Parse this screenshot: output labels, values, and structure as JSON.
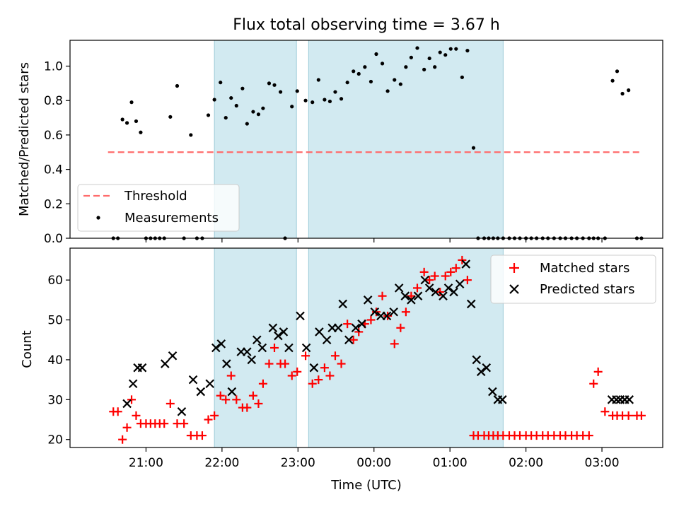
{
  "title": "Flux total observing time = 3.67 h",
  "xlabel": "Time (UTC)",
  "colors": {
    "band": "#add8e6",
    "threshold": "#ff6b6b",
    "matched": "#ff0000",
    "predicted": "#000000",
    "measure": "#000000"
  },
  "chart_data": [
    {
      "type": "scatter",
      "panel": "top",
      "ylabel": "Matched/Predicted stars",
      "ylim": [
        0,
        1.15
      ],
      "yticks": [
        "0.0",
        "0.2",
        "0.4",
        "0.6",
        "0.8",
        "1.0"
      ],
      "ytick_values": [
        0,
        0.2,
        0.4,
        0.6,
        0.8,
        1.0
      ],
      "legend": {
        "position": "lower-left",
        "entries": [
          "Threshold",
          "Measurements"
        ]
      },
      "threshold": {
        "name": "Threshold",
        "y": 0.5,
        "x": [
          20.5,
          27.5
        ]
      },
      "bands": [
        [
          21.9,
          22.98
        ],
        [
          23.14,
          25.7
        ]
      ],
      "series": [
        {
          "name": "Measurements",
          "x": [
            20.57,
            20.63,
            20.69,
            20.75,
            20.81,
            20.87,
            20.93,
            21.0,
            21.06,
            21.12,
            21.18,
            21.24,
            21.32,
            21.41,
            21.5,
            21.59,
            21.67,
            21.74,
            21.82,
            21.9,
            21.98,
            22.05,
            22.12,
            22.19,
            22.27,
            22.33,
            22.41,
            22.48,
            22.54,
            22.62,
            22.69,
            22.77,
            22.83,
            22.92,
            22.99,
            23.1,
            23.19,
            23.27,
            23.35,
            23.42,
            23.49,
            23.57,
            23.65,
            23.73,
            23.8,
            23.88,
            23.96,
            24.03,
            24.11,
            24.18,
            24.27,
            24.35,
            24.42,
            24.49,
            24.57,
            24.66,
            24.73,
            24.8,
            24.87,
            24.94,
            25.01,
            25.08,
            25.16,
            25.23,
            25.31,
            25.37,
            25.45,
            25.51,
            25.57,
            25.63,
            25.7,
            25.78,
            25.85,
            25.92,
            26.0,
            26.07,
            26.14,
            26.22,
            26.29,
            26.37,
            26.45,
            26.52,
            26.6,
            26.67,
            26.75,
            26.83,
            26.89,
            26.95,
            27.04,
            27.14,
            27.2,
            27.27,
            27.35,
            27.46,
            27.52
          ],
          "y": [
            0,
            0,
            0.69,
            0.67,
            0.79,
            0.68,
            0.615,
            0,
            0,
            0,
            0,
            0,
            0.705,
            0.885,
            0,
            0.6,
            0,
            0,
            0.715,
            0.805,
            0.905,
            0.7,
            0.815,
            0.77,
            0.87,
            0.665,
            0.735,
            0.72,
            0.755,
            0.9,
            0.89,
            0.85,
            0,
            0.765,
            0.855,
            0.8,
            0.79,
            0.92,
            0.805,
            0.795,
            0.85,
            0.81,
            0.905,
            0.97,
            0.955,
            0.995,
            0.91,
            1.07,
            1.015,
            0.855,
            0.92,
            0.895,
            0.995,
            1.05,
            1.105,
            0.98,
            1.045,
            0.995,
            1.08,
            1.065,
            1.1,
            1.1,
            0.935,
            1.09,
            0.525,
            0,
            0,
            0,
            0,
            0,
            0,
            0,
            0,
            0,
            0,
            0,
            0,
            0,
            0,
            0,
            0,
            0,
            0,
            0,
            0,
            0,
            0,
            0,
            0,
            0.915,
            0.97,
            0.84,
            0.86,
            0,
            0
          ]
        }
      ]
    },
    {
      "type": "scatter",
      "panel": "bottom",
      "ylabel": "Count",
      "ylim": [
        18,
        68
      ],
      "yticks": [
        "20",
        "30",
        "40",
        "50",
        "60"
      ],
      "ytick_values": [
        20,
        30,
        40,
        50,
        60
      ],
      "xticks": [
        "21:00",
        "22:00",
        "23:00",
        "00:00",
        "01:00",
        "02:00",
        "03:00"
      ],
      "xtick_values": [
        21,
        22,
        23,
        24,
        25,
        26,
        27
      ],
      "xlim": [
        20.0,
        27.8
      ],
      "legend": {
        "position": "top-right",
        "entries": [
          "Matched stars",
          "Predicted stars"
        ]
      },
      "bands": [
        [
          21.9,
          22.98
        ],
        [
          23.14,
          25.7
        ]
      ],
      "series": [
        {
          "name": "Matched stars",
          "marker": "plus",
          "x": [
            20.57,
            20.63,
            20.69,
            20.75,
            20.81,
            20.87,
            20.93,
            21.0,
            21.06,
            21.12,
            21.18,
            21.24,
            21.32,
            21.41,
            21.5,
            21.59,
            21.67,
            21.74,
            21.82,
            21.9,
            21.98,
            22.05,
            22.12,
            22.19,
            22.27,
            22.33,
            22.41,
            22.48,
            22.54,
            22.62,
            22.69,
            22.77,
            22.83,
            22.92,
            22.99,
            23.1,
            23.19,
            23.27,
            23.35,
            23.42,
            23.49,
            23.57,
            23.65,
            23.73,
            23.8,
            23.88,
            23.96,
            24.03,
            24.11,
            24.18,
            24.27,
            24.35,
            24.42,
            24.49,
            24.57,
            24.66,
            24.73,
            24.8,
            24.87,
            24.94,
            25.01,
            25.08,
            25.16,
            25.23,
            25.31,
            25.37,
            25.45,
            25.51,
            25.57,
            25.63,
            25.7,
            25.78,
            25.85,
            25.92,
            26.0,
            26.07,
            26.14,
            26.22,
            26.29,
            26.37,
            26.45,
            26.52,
            26.6,
            26.67,
            26.75,
            26.83,
            26.89,
            26.95,
            27.04,
            27.14,
            27.2,
            27.27,
            27.35,
            27.46,
            27.52
          ],
          "y": [
            27,
            27,
            20,
            23,
            30,
            26,
            24,
            24,
            24,
            24,
            24,
            24,
            29,
            24,
            24,
            21,
            21,
            21,
            25,
            26,
            31,
            30,
            36,
            30,
            28,
            28,
            31,
            29,
            34,
            39,
            43,
            39,
            39,
            36,
            37,
            41,
            34,
            35,
            38,
            36,
            41,
            39,
            49,
            45,
            47,
            49,
            50,
            52,
            56,
            51,
            44,
            48,
            52,
            56,
            58,
            62,
            60,
            61,
            57,
            61,
            62,
            63,
            65,
            60,
            21,
            21,
            21,
            21,
            21,
            21,
            21,
            21,
            21,
            21,
            21,
            21,
            21,
            21,
            21,
            21,
            21,
            21,
            21,
            21,
            21,
            21,
            34,
            37,
            27,
            26,
            26,
            26,
            26,
            26,
            26
          ]
        },
        {
          "name": "Predicted stars",
          "marker": "x",
          "x": [
            20.75,
            20.83,
            20.89,
            20.95,
            21.25,
            21.35,
            21.47,
            21.62,
            21.72,
            21.84,
            21.92,
            21.99,
            22.06,
            22.13,
            22.25,
            22.33,
            22.39,
            22.46,
            22.53,
            22.67,
            22.74,
            22.81,
            22.88,
            23.03,
            23.11,
            23.21,
            23.28,
            23.38,
            23.45,
            23.53,
            23.59,
            23.67,
            23.76,
            23.84,
            23.92,
            24.01,
            24.09,
            24.17,
            24.26,
            24.33,
            24.41,
            24.49,
            24.58,
            24.67,
            24.73,
            24.81,
            24.91,
            24.98,
            25.05,
            25.13,
            25.21,
            25.28,
            25.35,
            25.41,
            25.48,
            25.56,
            25.63,
            25.69,
            27.13,
            27.19,
            27.24,
            27.3,
            27.36
          ],
          "y": [
            29,
            34,
            38,
            38,
            39,
            41,
            27,
            35,
            32,
            34,
            43,
            44,
            39,
            32,
            42,
            42,
            40,
            45,
            43,
            48,
            46,
            47,
            43,
            51,
            43,
            38,
            47,
            45,
            48,
            48,
            54,
            45,
            48,
            49,
            55,
            52,
            51,
            51,
            52,
            58,
            56,
            55,
            56,
            60,
            58,
            57,
            56,
            58,
            57,
            59,
            64,
            54,
            40,
            37,
            38,
            32,
            30,
            30,
            30,
            30,
            30,
            30,
            30
          ]
        }
      ]
    }
  ]
}
